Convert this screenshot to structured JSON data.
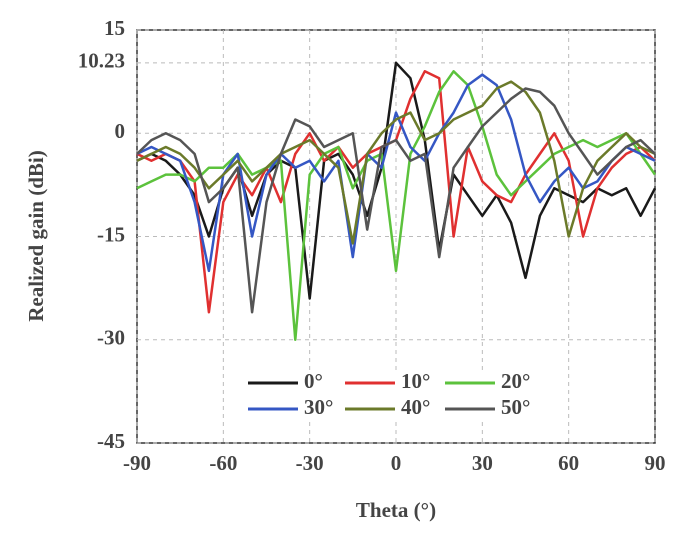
{
  "chart_data": {
    "type": "line",
    "xlabel": "Theta (°)",
    "ylabel": "Realized gain (dBi)",
    "x": [
      -90,
      -85,
      -80,
      -75,
      -70,
      -65,
      -60,
      -55,
      -50,
      -45,
      -40,
      -35,
      -30,
      -25,
      -20,
      -15,
      -10,
      -5,
      0,
      5,
      10,
      15,
      20,
      25,
      30,
      35,
      40,
      45,
      50,
      55,
      60,
      65,
      70,
      75,
      80,
      85,
      90
    ],
    "series": [
      {
        "name": "0°",
        "color": "#1a1a1a",
        "values": [
          -4,
          -3,
          -4,
          -6,
          -9,
          -15,
          -8,
          -5,
          -12,
          -6,
          -4,
          -5,
          -24,
          -4,
          -3,
          -6,
          -12,
          -5,
          10.23,
          8,
          -1,
          -17,
          -6,
          -9,
          -12,
          -9,
          -13,
          -21,
          -12,
          -8,
          -9,
          -10,
          -8,
          -9,
          -8,
          -12,
          -8
        ]
      },
      {
        "name": "10°",
        "color": "#e03030",
        "values": [
          -3,
          -4,
          -3,
          -4,
          -7,
          -26,
          -10,
          -6,
          -9,
          -5,
          -10,
          -3,
          0,
          -4,
          -2,
          -5,
          -3,
          -2,
          -1,
          5,
          9,
          8,
          -15,
          -2,
          -7,
          -9,
          -10,
          -6,
          -3,
          0,
          -4,
          -15,
          -8,
          -5,
          -3,
          -2,
          -4
        ]
      },
      {
        "name": "20°",
        "color": "#5cc23c",
        "values": [
          -8,
          -7,
          -6,
          -6,
          -7,
          -5,
          -5,
          -3,
          -6,
          -5,
          -4,
          -30,
          -6,
          -3,
          -2,
          -8,
          -4,
          -3,
          -20,
          -3,
          1,
          6,
          9,
          7,
          1,
          -6,
          -9,
          -7,
          -5,
          -3,
          -2,
          -1,
          -2,
          -1,
          0,
          -3,
          -6
        ]
      },
      {
        "name": "30°",
        "color": "#3557c4",
        "values": [
          -3,
          -2,
          -3,
          -4,
          -10,
          -20,
          -6,
          -3,
          -15,
          -6,
          -3,
          -5,
          -4,
          -7,
          -4,
          -18,
          -3,
          -5,
          3,
          -2,
          -4,
          0,
          3,
          7,
          8.5,
          7,
          2,
          -6,
          -10,
          -7,
          -5,
          -8,
          -7,
          -4,
          -2,
          -3,
          -4
        ]
      },
      {
        "name": "40°",
        "color": "#6b7a2a",
        "values": [
          -4,
          -3,
          -2,
          -3,
          -5,
          -8,
          -6,
          -4,
          -7,
          -5,
          -3,
          -2,
          -1,
          -3,
          -5,
          -16,
          -3,
          0,
          2,
          3,
          -1,
          0,
          2,
          3,
          4,
          6.5,
          7.5,
          6,
          3,
          -4,
          -15,
          -8,
          -4,
          -2,
          0,
          -2,
          -3
        ]
      },
      {
        "name": "50°",
        "color": "#555555",
        "values": [
          -3,
          -1,
          0,
          -1,
          -3,
          -10,
          -8,
          -5,
          -26,
          -10,
          -3,
          2,
          1,
          -2,
          -1,
          0,
          -14,
          -2,
          -1,
          -4,
          -3,
          -18,
          -5,
          -2,
          1,
          3,
          5,
          6.5,
          6,
          4,
          0,
          -3,
          -6,
          -4,
          -2,
          -1,
          -3
        ]
      }
    ],
    "xlim": [
      -90,
      90
    ],
    "xticks": [
      -90,
      -60,
      -30,
      0,
      30,
      60,
      90
    ],
    "ylim": [
      -45,
      15
    ],
    "yticks": [
      15,
      10.23,
      0,
      -15,
      -30,
      -45
    ],
    "grid": true,
    "legend": "bottom"
  }
}
